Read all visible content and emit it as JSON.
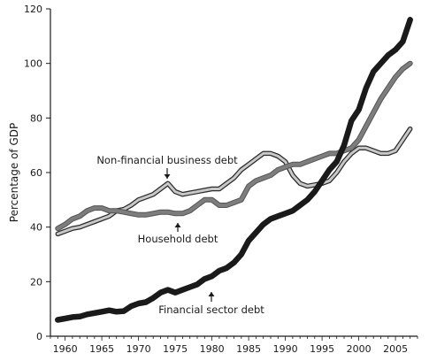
{
  "chart_data": {
    "type": "line",
    "ylabel": "Percentage of GDP",
    "xlabel": "",
    "xlim": [
      1958,
      2008
    ],
    "ylim": [
      0,
      120
    ],
    "x_ticks": [
      1960,
      1965,
      1970,
      1975,
      1980,
      1985,
      1990,
      1995,
      2000,
      2005
    ],
    "y_ticks": [
      0,
      20,
      40,
      60,
      80,
      100,
      120
    ],
    "grid": false,
    "legend": "none (series labelled by in-chart annotations)",
    "series": [
      {
        "name": "Financial sector debt",
        "color": "#1a1a1a",
        "style": "thick black line",
        "x": [
          1959,
          1960,
          1961,
          1962,
          1963,
          1964,
          1965,
          1966,
          1967,
          1968,
          1969,
          1970,
          1971,
          1972,
          1973,
          1974,
          1975,
          1976,
          1977,
          1978,
          1979,
          1980,
          1981,
          1982,
          1983,
          1984,
          1985,
          1986,
          1987,
          1988,
          1989,
          1990,
          1991,
          1992,
          1993,
          1994,
          1995,
          1996,
          1997,
          1998,
          1999,
          2000,
          2001,
          2002,
          2003,
          2004,
          2005,
          2006,
          2007
        ],
        "values": [
          6,
          6.5,
          7,
          7.2,
          8,
          8.5,
          9,
          9.5,
          9,
          9.2,
          11,
          12,
          12.5,
          14,
          16,
          17,
          16,
          17,
          18,
          19,
          21,
          22,
          24,
          25,
          27,
          30,
          35,
          38,
          41,
          43,
          44,
          45,
          46,
          48,
          50,
          53,
          57,
          61,
          64,
          70,
          79,
          83,
          91,
          97,
          100,
          103,
          105,
          108,
          116
        ]
      },
      {
        "name": "Household debt",
        "color": "#7d7d7d",
        "style": "medium grey line",
        "x": [
          1959,
          1960,
          1961,
          1962,
          1963,
          1964,
          1965,
          1966,
          1967,
          1968,
          1969,
          1970,
          1971,
          1972,
          1973,
          1974,
          1975,
          1976,
          1977,
          1978,
          1979,
          1980,
          1981,
          1982,
          1983,
          1984,
          1985,
          1986,
          1987,
          1988,
          1989,
          1990,
          1991,
          1992,
          1993,
          1994,
          1995,
          1996,
          1997,
          1998,
          1999,
          2000,
          2001,
          2002,
          2003,
          2004,
          2005,
          2006,
          2007
        ],
        "values": [
          39.5,
          41,
          43,
          44,
          46,
          47,
          47,
          46,
          46,
          45.5,
          45,
          44.5,
          44.5,
          45,
          45.5,
          45.5,
          45,
          45,
          46,
          48,
          50,
          50,
          48,
          48,
          49,
          50,
          55,
          57,
          58,
          59,
          61,
          62,
          63,
          63,
          64,
          65,
          66,
          67,
          67,
          68,
          69,
          72,
          77,
          82,
          87,
          91,
          95,
          98,
          100
        ]
      },
      {
        "name": "Non-financial business debt",
        "color": "#c8c8c8",
        "style": "light grey line with dark outline",
        "x": [
          1959,
          1960,
          1961,
          1962,
          1963,
          1964,
          1965,
          1966,
          1967,
          1968,
          1969,
          1970,
          1971,
          1972,
          1973,
          1974,
          1975,
          1976,
          1977,
          1978,
          1979,
          1980,
          1981,
          1982,
          1983,
          1984,
          1985,
          1986,
          1987,
          1988,
          1989,
          1990,
          1991,
          1992,
          1993,
          1994,
          1995,
          1996,
          1997,
          1998,
          1999,
          2000,
          2001,
          2002,
          2003,
          2004,
          2005,
          2006,
          2007
        ],
        "values": [
          37.5,
          38.5,
          39.5,
          40,
          41,
          42,
          43,
          44,
          46,
          46.5,
          48,
          50,
          51,
          52,
          54,
          56,
          53,
          52,
          52.5,
          53,
          53.5,
          54,
          54,
          56,
          58,
          61,
          63,
          65,
          67,
          67,
          66,
          64,
          59,
          56,
          55,
          55.5,
          56,
          57,
          60,
          64,
          67,
          69,
          69,
          68,
          67,
          67,
          68,
          72,
          76
        ]
      }
    ],
    "annotations": [
      {
        "text": "Non-financial business debt",
        "points_to": "Non-financial business debt",
        "at_x": 1974,
        "at_y": 56,
        "arrow": "down"
      },
      {
        "text": "Household debt",
        "points_to": "Household debt",
        "at_x": 1975,
        "at_y": 45,
        "arrow": "up"
      },
      {
        "text": "Financial sector debt",
        "points_to": "Financial sector debt",
        "at_x": 1980,
        "at_y": 20,
        "arrow": "up"
      }
    ]
  }
}
